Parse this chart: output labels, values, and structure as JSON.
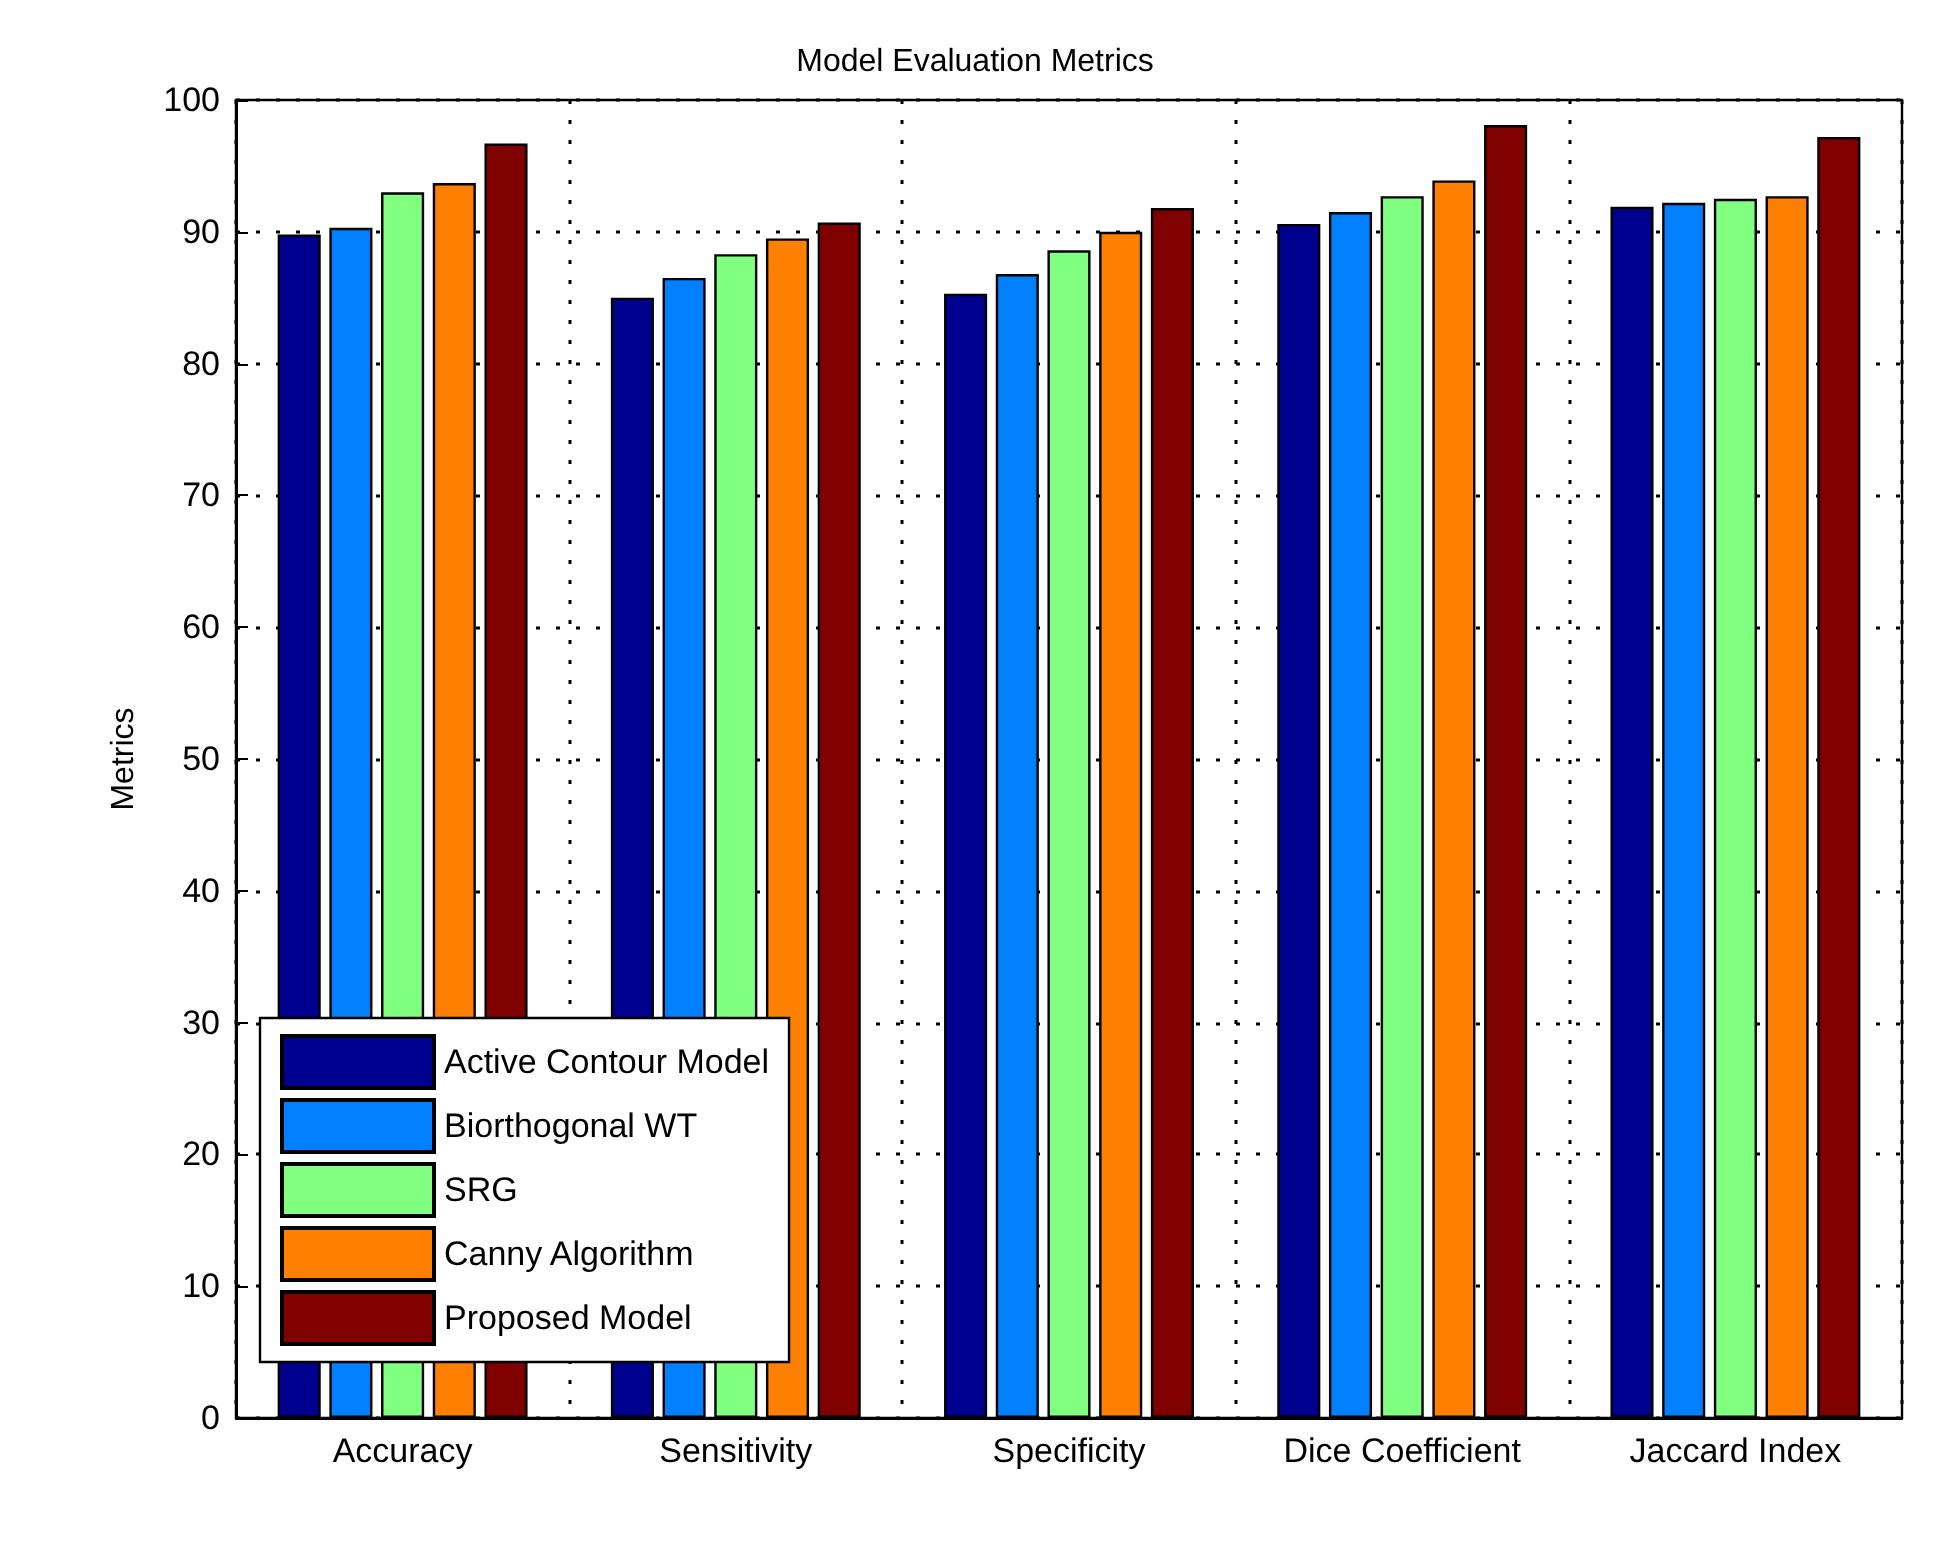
{
  "chart_data": {
    "type": "bar",
    "title": "Model Evaluation Metrics",
    "ylabel": "Metrics",
    "categories": [
      "Accuracy",
      "Sensitivity",
      "Specificity",
      "Dice Coefficient",
      "Jaccard Index"
    ],
    "series": [
      {
        "name": "Active Contour Model",
        "color": "#00008f",
        "values": [
          89.8,
          85.0,
          85.3,
          90.6,
          91.9
        ]
      },
      {
        "name": "Biorthogonal WT",
        "color": "#0080ff",
        "values": [
          90.3,
          86.5,
          86.8,
          91.5,
          92.2
        ]
      },
      {
        "name": "SRG",
        "color": "#80ff80",
        "values": [
          93.0,
          88.3,
          88.6,
          92.7,
          92.5
        ]
      },
      {
        "name": "Canny Algorithm",
        "color": "#ff8000",
        "values": [
          93.7,
          89.5,
          90.0,
          93.9,
          92.7
        ]
      },
      {
        "name": "Proposed Model",
        "color": "#800000",
        "values": [
          96.7,
          90.7,
          91.8,
          98.1,
          97.2
        ]
      }
    ],
    "ylim": [
      0,
      100
    ],
    "yticks": [
      0,
      10,
      20,
      30,
      40,
      50,
      60,
      70,
      80,
      90,
      100
    ],
    "grid": true,
    "legend": "bottom left"
  }
}
